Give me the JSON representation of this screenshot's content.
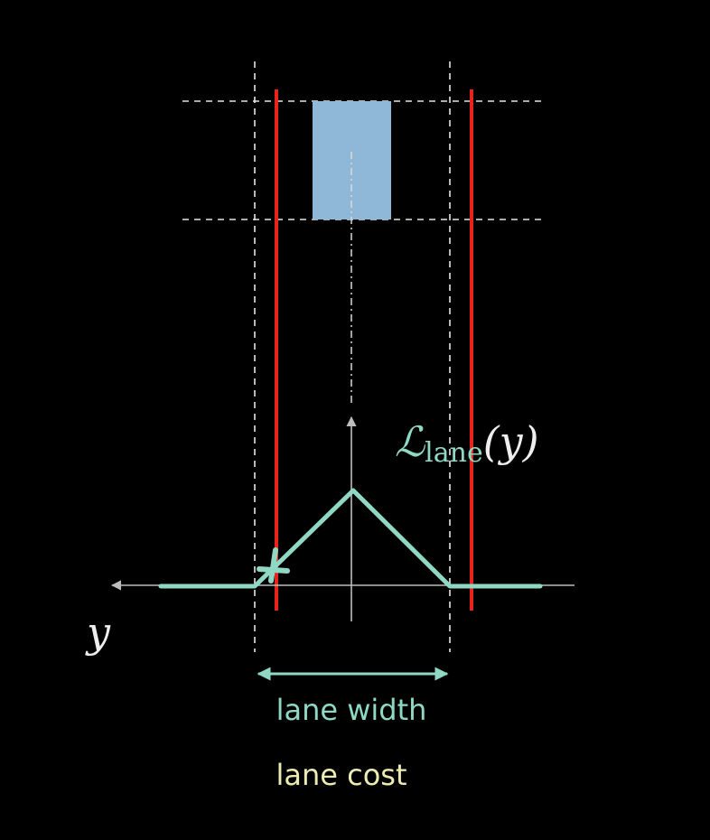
{
  "colors": {
    "background": "#000000",
    "lane_boundary": "#e8221c",
    "vehicle": "#8fb8d8",
    "cost_curve": "#8fd8c4",
    "axis": "#bdbdbd",
    "guides": "#e6e6e6",
    "caption": "#ecebb2"
  },
  "diagram": {
    "cost_label": {
      "symbol": "ℒ",
      "subscript": "lane",
      "argument": "(y)"
    },
    "axis_label": "y",
    "width_label": "lane width",
    "caption": "lane cost"
  }
}
